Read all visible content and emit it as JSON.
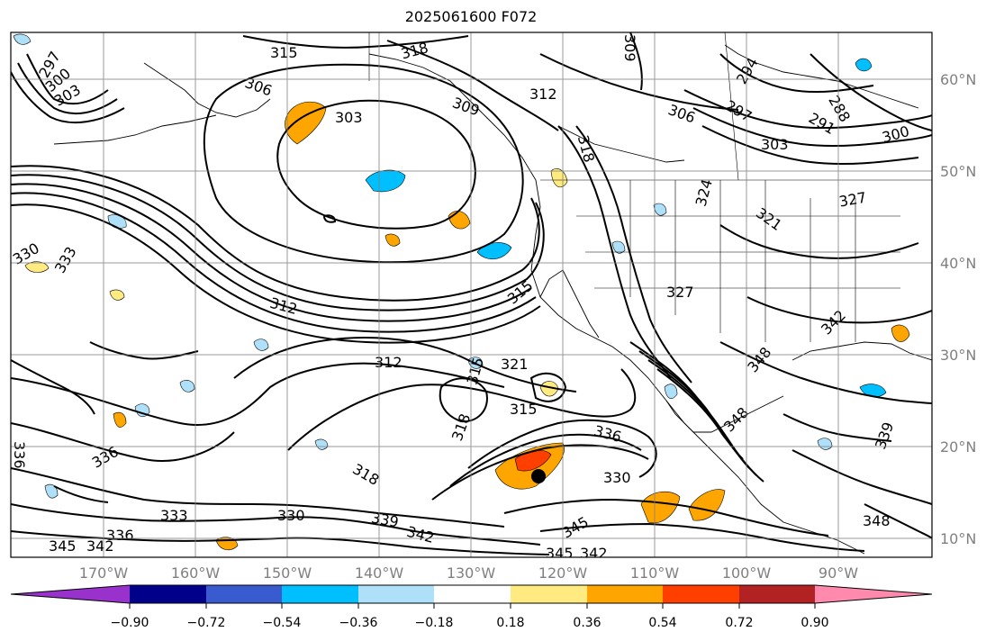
{
  "title": "2025061600 F072",
  "lon_labels": [
    "170°W",
    "160°W",
    "150°W",
    "140°W",
    "130°W",
    "120°W",
    "110°W",
    "100°W",
    "90°W"
  ],
  "lat_labels": [
    "60°N",
    "50°N",
    "40°N",
    "30°N",
    "20°N",
    "10°N"
  ],
  "colorbar": {
    "colors": [
      "#9932cc",
      "#00008b",
      "#3a5bd0",
      "#00bfff",
      "#aee0fa",
      "#ffffff",
      "#ffeb80",
      "#ffa500",
      "#ff3f00",
      "#b22222",
      "#ff8aad"
    ],
    "ticks": [
      "−0.90",
      "−0.72",
      "−0.54",
      "−0.36",
      "−0.18",
      "0.18",
      "0.36",
      "0.54",
      "0.72",
      "0.90"
    ]
  },
  "contour_labels": [
    {
      "text": "297"
    },
    {
      "text": "300"
    },
    {
      "text": "303"
    },
    {
      "text": "315"
    },
    {
      "text": "318"
    },
    {
      "text": "309"
    },
    {
      "text": "306"
    },
    {
      "text": "303"
    },
    {
      "text": "312"
    },
    {
      "text": "309"
    },
    {
      "text": "306"
    },
    {
      "text": "294"
    },
    {
      "text": "297"
    },
    {
      "text": "303"
    },
    {
      "text": "291"
    },
    {
      "text": "288"
    },
    {
      "text": "300"
    },
    {
      "text": "318"
    },
    {
      "text": "324"
    },
    {
      "text": "321"
    },
    {
      "text": "327"
    },
    {
      "text": "330"
    },
    {
      "text": "333"
    },
    {
      "text": "312"
    },
    {
      "text": "315"
    },
    {
      "text": "327"
    },
    {
      "text": "342"
    },
    {
      "text": "312"
    },
    {
      "text": "315"
    },
    {
      "text": "321"
    },
    {
      "text": "315"
    },
    {
      "text": "318"
    },
    {
      "text": "336"
    },
    {
      "text": "348"
    },
    {
      "text": "348"
    },
    {
      "text": "339"
    },
    {
      "text": "336"
    },
    {
      "text": "336"
    },
    {
      "text": "318"
    },
    {
      "text": "330"
    },
    {
      "text": "333"
    },
    {
      "text": "336"
    },
    {
      "text": "330"
    },
    {
      "text": "339"
    },
    {
      "text": "342"
    },
    {
      "text": "345"
    },
    {
      "text": "342"
    },
    {
      "text": "345"
    },
    {
      "text": "342"
    },
    {
      "text": "345"
    },
    {
      "text": "348"
    }
  ]
}
